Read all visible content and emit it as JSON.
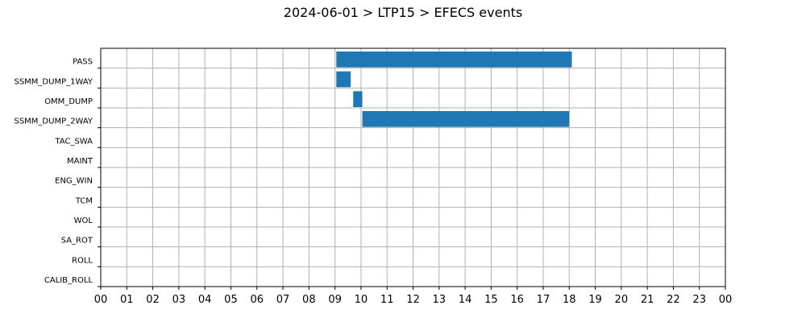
{
  "chart_data": {
    "type": "bar",
    "orientation": "horizontal-timeline",
    "title": "2024-06-01 > LTP15 > EFECS events",
    "xlabel": "",
    "ylabel": "",
    "x_tick_labels": [
      "00",
      "01",
      "02",
      "03",
      "04",
      "05",
      "06",
      "07",
      "08",
      "09",
      "10",
      "11",
      "12",
      "13",
      "14",
      "15",
      "16",
      "17",
      "18",
      "19",
      "20",
      "21",
      "22",
      "23",
      "00"
    ],
    "xlim": [
      0,
      24
    ],
    "grid": true,
    "categories": [
      "PASS",
      "SSMM_DUMP_1WAY",
      "OMM_DUMP",
      "SSMM_DUMP_2WAY",
      "TAC_SWA",
      "MAINT",
      "ENG_WIN",
      "TCM",
      "WOL",
      "SA_ROT",
      "ROLL",
      "CALIB_ROLL"
    ],
    "events": [
      {
        "category": "PASS",
        "start": 9.05,
        "end": 18.1
      },
      {
        "category": "SSMM_DUMP_1WAY",
        "start": 9.05,
        "end": 9.6
      },
      {
        "category": "OMM_DUMP",
        "start": 9.7,
        "end": 10.05
      },
      {
        "category": "SSMM_DUMP_2WAY",
        "start": 10.05,
        "end": 18.0
      }
    ],
    "bar_color": "#1f77b4",
    "grid_color": "#b0b0b0"
  }
}
